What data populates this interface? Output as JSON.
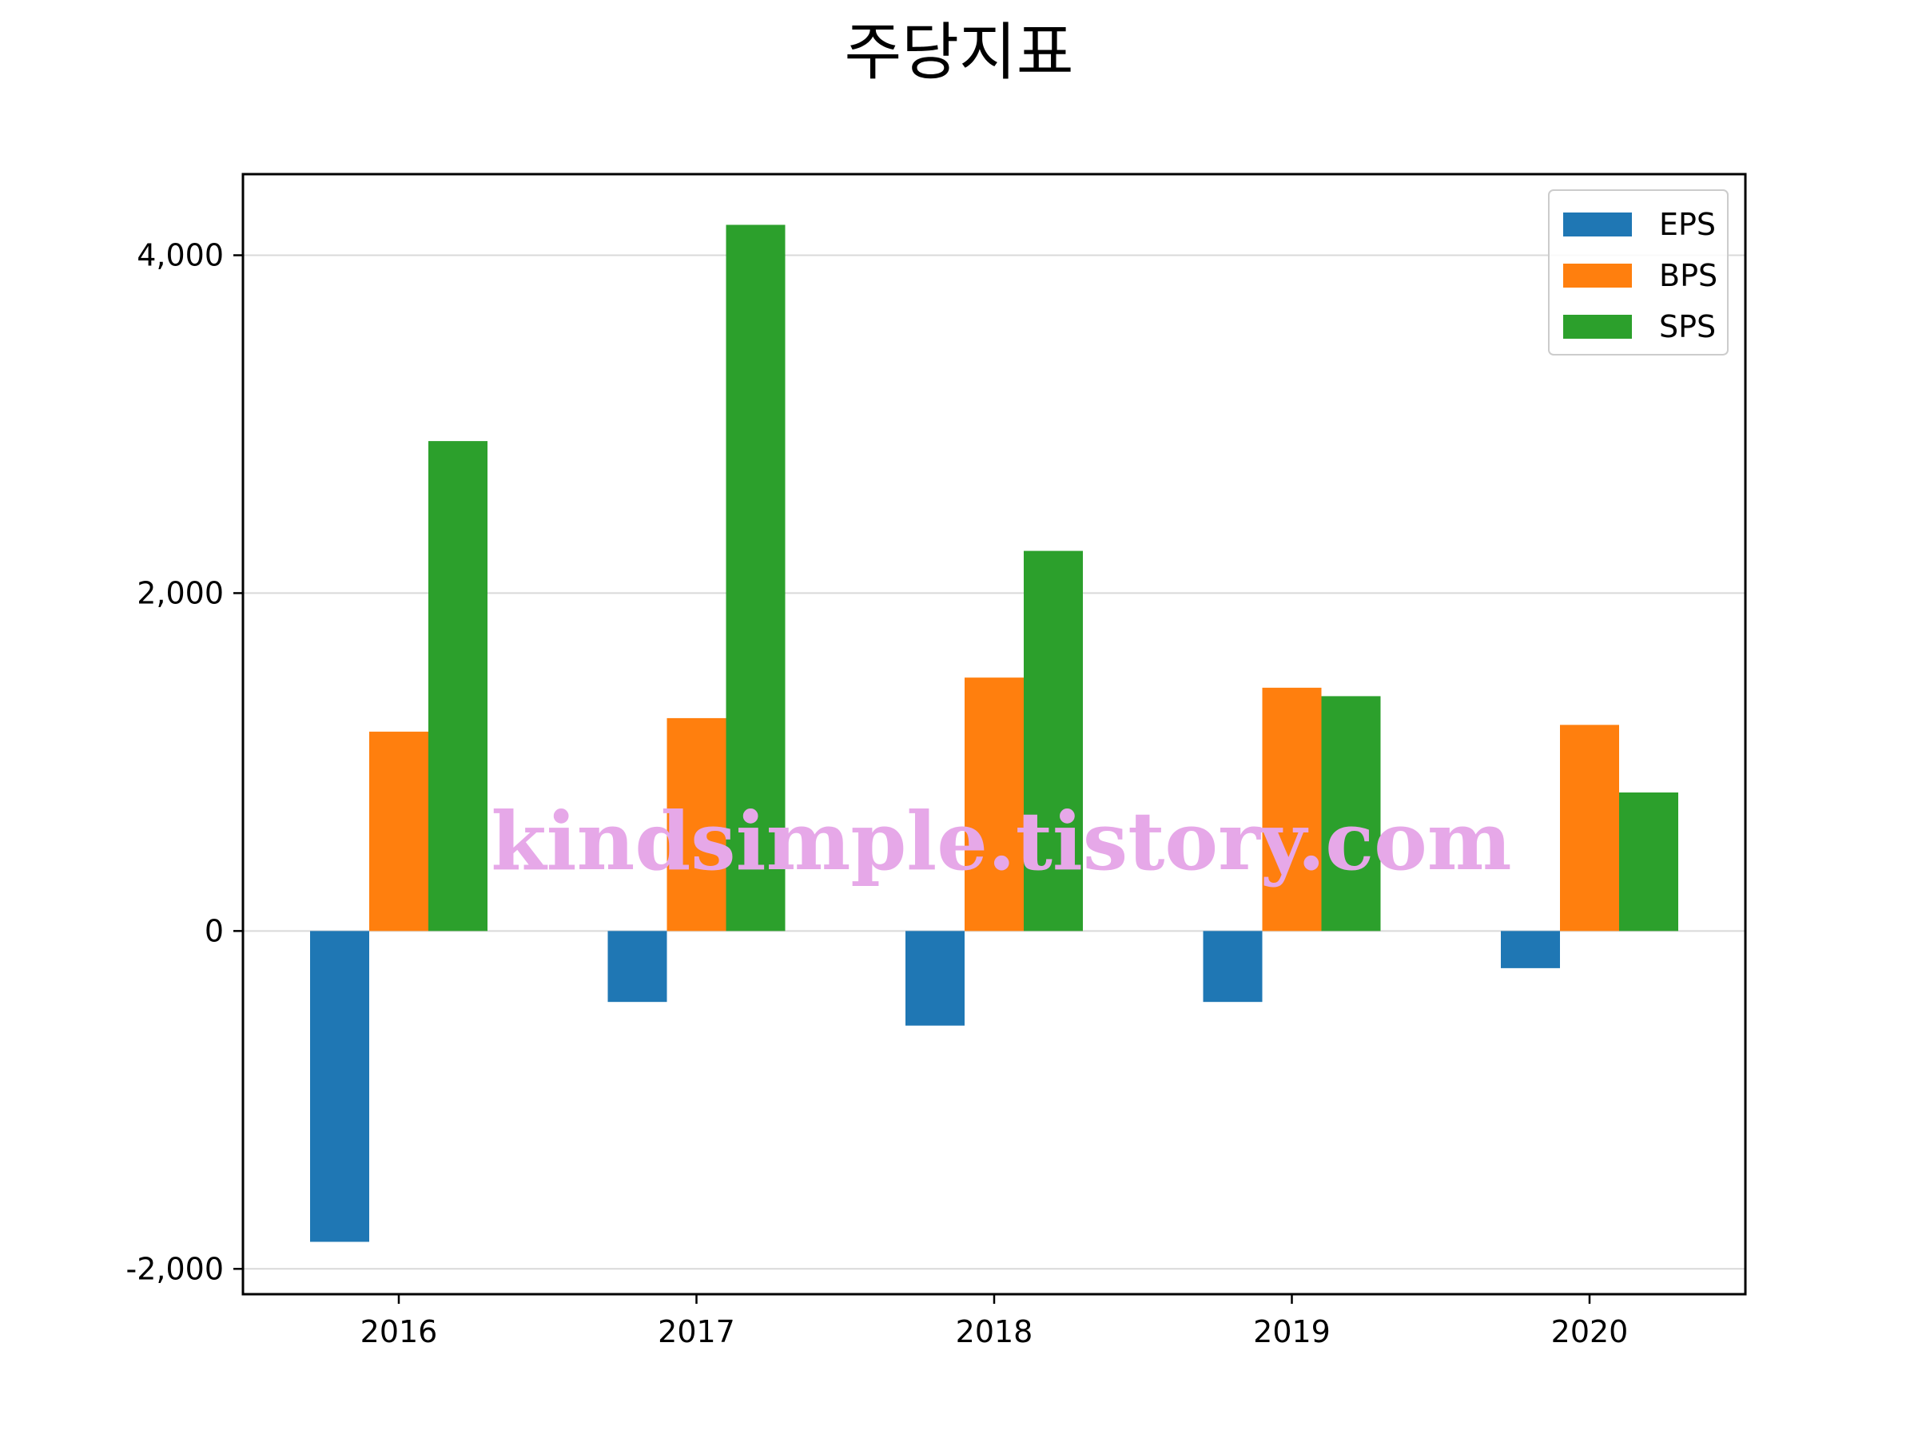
{
  "chart_data": {
    "type": "bar",
    "title": "주당지표",
    "xlabel": "",
    "ylabel": "",
    "categories": [
      "2016",
      "2017",
      "2018",
      "2019",
      "2020"
    ],
    "series": [
      {
        "name": "EPS",
        "color": "#1f77b4",
        "values": [
          -1840,
          -420,
          -560,
          -420,
          -220
        ]
      },
      {
        "name": "BPS",
        "color": "#ff7f0e",
        "values": [
          1180,
          1260,
          1500,
          1440,
          1220
        ]
      },
      {
        "name": "SPS",
        "color": "#2ca02c",
        "values": [
          2900,
          4180,
          2250,
          1390,
          820
        ]
      }
    ],
    "ylim": [
      -2150,
      4480
    ],
    "yticks": [
      -2000,
      0,
      2000,
      4000
    ],
    "ytick_labels": [
      "-2,000",
      "0",
      "2,000",
      "4,000"
    ],
    "grid": "y",
    "legend": "top-right"
  },
  "watermark": "kindsimple.tistory.com"
}
